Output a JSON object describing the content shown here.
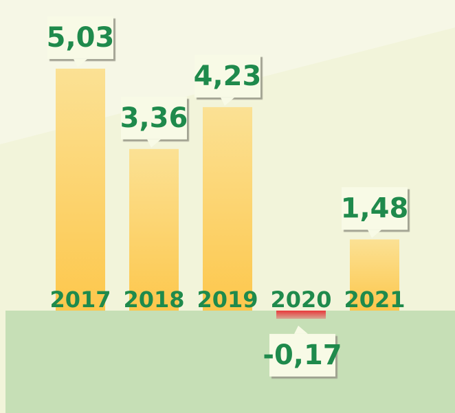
{
  "chart_data": {
    "type": "bar",
    "categories": [
      "2017",
      "2018",
      "2019",
      "2020",
      "2021"
    ],
    "values": [
      5.03,
      3.36,
      4.23,
      -0.17,
      1.48
    ],
    "value_labels": [
      "5,03",
      "3,36",
      "4,23",
      "-0,17",
      "1,48"
    ],
    "color": "#fdd062",
    "negative_color": "#e8393c"
  }
}
